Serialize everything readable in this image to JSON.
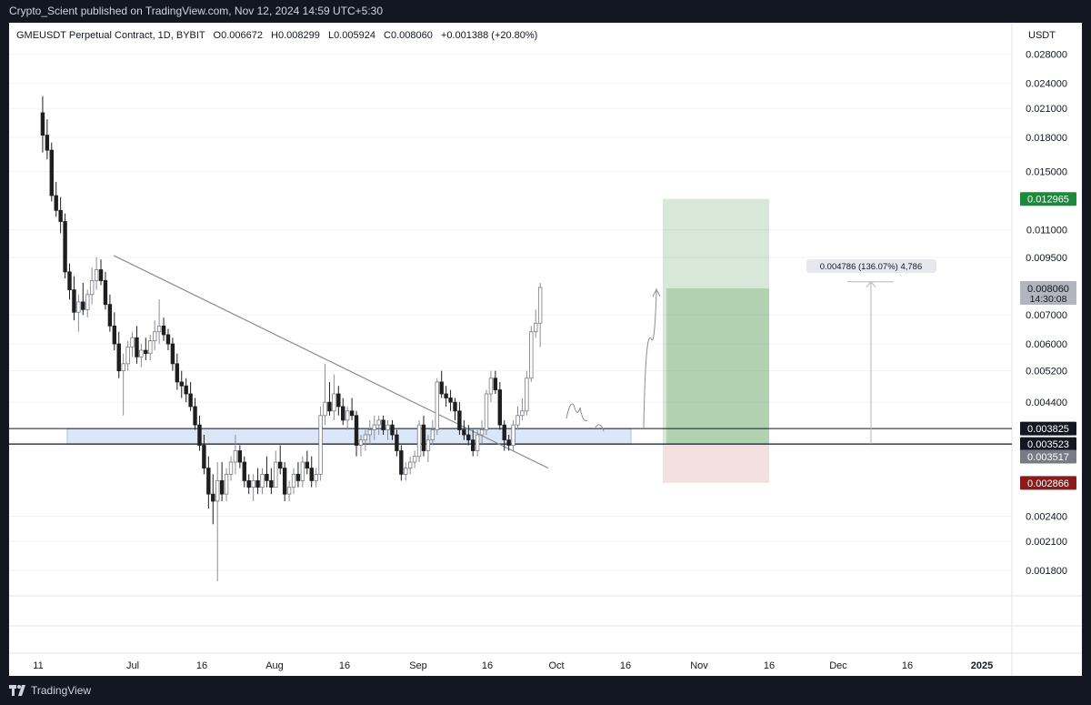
{
  "header": {
    "published_by": "Crypto_Scient published on TradingView.com, Nov 12, 2024 14:59 UTC+5:30"
  },
  "legend": {
    "symbol": "GMEUSDT Perpetual Contract, 1D, BYBIT",
    "open_label": "O",
    "open": "0.006672",
    "high_label": "H",
    "high": "0.008299",
    "low_label": "L",
    "low": "0.005924",
    "close_label": "C",
    "close": "0.008060",
    "change": "+0.001388 (+20.80%)"
  },
  "currency": "USDT",
  "footer": {
    "brand": "TradingView"
  },
  "chart_data": {
    "type": "candlestick",
    "y_scale": "log",
    "ylim": [
      0.0016,
      0.028
    ],
    "y_ticks": [
      "0.028000",
      "0.024000",
      "0.021000",
      "0.018000",
      "0.015000",
      "0.011000",
      "0.009500",
      "0.007000",
      "0.006000",
      "0.005200",
      "0.004400",
      "0.002400",
      "0.002100",
      "0.001800"
    ],
    "x_ticks": [
      "11",
      "Jul",
      "16",
      "Aug",
      "16",
      "Sep",
      "16",
      "Oct",
      "16",
      "Nov",
      "16",
      "Dec",
      "16",
      "2025"
    ],
    "candles": [
      [
        0.0205,
        0.0224,
        0.0166,
        0.0182
      ],
      [
        0.0182,
        0.0198,
        0.016,
        0.0168
      ],
      [
        0.0168,
        0.0175,
        0.0128,
        0.0132
      ],
      [
        0.0132,
        0.0142,
        0.0118,
        0.0122
      ],
      [
        0.0122,
        0.0131,
        0.0108,
        0.0115
      ],
      [
        0.0115,
        0.012,
        0.0085,
        0.0088
      ],
      [
        0.0088,
        0.0092,
        0.0076,
        0.008
      ],
      [
        0.008,
        0.0086,
        0.0068,
        0.0071
      ],
      [
        0.0071,
        0.0078,
        0.0064,
        0.0075
      ],
      [
        0.0075,
        0.0083,
        0.007,
        0.0072
      ],
      [
        0.0072,
        0.008,
        0.0069,
        0.0078
      ],
      [
        0.0078,
        0.009,
        0.0074,
        0.0084
      ],
      [
        0.0084,
        0.0095,
        0.008,
        0.0089
      ],
      [
        0.0089,
        0.0094,
        0.0082,
        0.0084
      ],
      [
        0.0084,
        0.0088,
        0.0072,
        0.0074
      ],
      [
        0.0074,
        0.0078,
        0.0064,
        0.0066
      ],
      [
        0.0066,
        0.0071,
        0.0058,
        0.006
      ],
      [
        0.006,
        0.0064,
        0.005,
        0.0052
      ],
      [
        0.0052,
        0.0057,
        0.0041,
        0.0054
      ],
      [
        0.0054,
        0.0061,
        0.0052,
        0.0059
      ],
      [
        0.0059,
        0.0064,
        0.0056,
        0.0062
      ],
      [
        0.0062,
        0.0066,
        0.0054,
        0.0056
      ],
      [
        0.0056,
        0.006,
        0.0053,
        0.0058
      ],
      [
        0.0058,
        0.0062,
        0.0055,
        0.0057
      ],
      [
        0.0057,
        0.0063,
        0.0055,
        0.0061
      ],
      [
        0.0061,
        0.0068,
        0.0058,
        0.0064
      ],
      [
        0.0064,
        0.0076,
        0.006,
        0.0066
      ],
      [
        0.0066,
        0.0069,
        0.0061,
        0.0063
      ],
      [
        0.0063,
        0.0065,
        0.0058,
        0.006
      ],
      [
        0.006,
        0.0062,
        0.0052,
        0.0054
      ],
      [
        0.0054,
        0.0057,
        0.0047,
        0.0049
      ],
      [
        0.0049,
        0.0052,
        0.0045,
        0.0048
      ],
      [
        0.0048,
        0.005,
        0.0044,
        0.0046
      ],
      [
        0.0046,
        0.0049,
        0.0042,
        0.0043
      ],
      [
        0.0043,
        0.0045,
        0.0038,
        0.0039
      ],
      [
        0.0039,
        0.0041,
        0.0034,
        0.0035
      ],
      [
        0.0035,
        0.0037,
        0.003,
        0.0031
      ],
      [
        0.0031,
        0.0033,
        0.0025,
        0.0027
      ],
      [
        0.0027,
        0.003,
        0.0023,
        0.0026
      ],
      [
        0.0026,
        0.0032,
        0.0017,
        0.0029
      ],
      [
        0.0029,
        0.0032,
        0.0026,
        0.0027
      ],
      [
        0.0027,
        0.0031,
        0.0026,
        0.003
      ],
      [
        0.003,
        0.0033,
        0.0029,
        0.0032
      ],
      [
        0.0032,
        0.0037,
        0.003,
        0.0034
      ],
      [
        0.0034,
        0.0035,
        0.0031,
        0.0032
      ],
      [
        0.0032,
        0.0033,
        0.0028,
        0.0029
      ],
      [
        0.0029,
        0.003,
        0.0027,
        0.0028
      ],
      [
        0.0028,
        0.003,
        0.0026,
        0.0029
      ],
      [
        0.0029,
        0.0031,
        0.0027,
        0.0028
      ],
      [
        0.0028,
        0.0031,
        0.0027,
        0.003
      ],
      [
        0.003,
        0.0033,
        0.0028,
        0.0029
      ],
      [
        0.0029,
        0.0031,
        0.0027,
        0.0028
      ],
      [
        0.0028,
        0.0034,
        0.0028,
        0.0032
      ],
      [
        0.0032,
        0.0035,
        0.003,
        0.0031
      ],
      [
        0.0031,
        0.0032,
        0.0026,
        0.0027
      ],
      [
        0.0027,
        0.0029,
        0.0026,
        0.0028
      ],
      [
        0.0028,
        0.0031,
        0.0027,
        0.003
      ],
      [
        0.003,
        0.0032,
        0.0028,
        0.0029
      ],
      [
        0.0029,
        0.0033,
        0.0028,
        0.0032
      ],
      [
        0.0032,
        0.0034,
        0.003,
        0.0031
      ],
      [
        0.0031,
        0.0033,
        0.0028,
        0.0029
      ],
      [
        0.0029,
        0.0031,
        0.0028,
        0.003
      ],
      [
        0.003,
        0.0043,
        0.0029,
        0.0041
      ],
      [
        0.0041,
        0.0054,
        0.0039,
        0.0044
      ],
      [
        0.0044,
        0.0049,
        0.0041,
        0.0042
      ],
      [
        0.0042,
        0.0051,
        0.004,
        0.0046
      ],
      [
        0.0046,
        0.0048,
        0.0041,
        0.0043
      ],
      [
        0.0043,
        0.0045,
        0.0039,
        0.004
      ],
      [
        0.004,
        0.0043,
        0.0038,
        0.0042
      ],
      [
        0.0042,
        0.0045,
        0.004,
        0.0041
      ],
      [
        0.0041,
        0.0042,
        0.0033,
        0.0035
      ],
      [
        0.0035,
        0.0037,
        0.0033,
        0.0036
      ],
      [
        0.0036,
        0.0038,
        0.0034,
        0.0037
      ],
      [
        0.0037,
        0.004,
        0.0035,
        0.0038
      ],
      [
        0.0038,
        0.0041,
        0.0036,
        0.0039
      ],
      [
        0.0039,
        0.0041,
        0.0037,
        0.004
      ],
      [
        0.004,
        0.0041,
        0.0037,
        0.0038
      ],
      [
        0.0038,
        0.004,
        0.0036,
        0.0039
      ],
      [
        0.0039,
        0.004,
        0.0036,
        0.0037
      ],
      [
        0.0037,
        0.0038,
        0.0033,
        0.0034
      ],
      [
        0.0034,
        0.0035,
        0.0029,
        0.003
      ],
      [
        0.003,
        0.0032,
        0.0029,
        0.0031
      ],
      [
        0.0031,
        0.0033,
        0.003,
        0.0032
      ],
      [
        0.0032,
        0.0034,
        0.0031,
        0.0033
      ],
      [
        0.0033,
        0.004,
        0.0032,
        0.0039
      ],
      [
        0.0039,
        0.0041,
        0.0033,
        0.0034
      ],
      [
        0.0034,
        0.0037,
        0.0032,
        0.0036
      ],
      [
        0.0036,
        0.004,
        0.0035,
        0.0038
      ],
      [
        0.0038,
        0.005,
        0.0037,
        0.0049
      ],
      [
        0.0049,
        0.0052,
        0.0045,
        0.0046
      ],
      [
        0.0046,
        0.0048,
        0.0043,
        0.0045
      ],
      [
        0.0045,
        0.0047,
        0.0042,
        0.0044
      ],
      [
        0.0044,
        0.0045,
        0.004,
        0.0042
      ],
      [
        0.0042,
        0.0044,
        0.0037,
        0.0038
      ],
      [
        0.0038,
        0.004,
        0.0036,
        0.0037
      ],
      [
        0.0037,
        0.0039,
        0.0035,
        0.0036
      ],
      [
        0.0036,
        0.0038,
        0.0033,
        0.0034
      ],
      [
        0.0034,
        0.0038,
        0.0033,
        0.0037
      ],
      [
        0.0037,
        0.004,
        0.0035,
        0.0038
      ],
      [
        0.0038,
        0.0047,
        0.0037,
        0.0046
      ],
      [
        0.0046,
        0.0052,
        0.0044,
        0.005
      ],
      [
        0.005,
        0.0052,
        0.0046,
        0.0047
      ],
      [
        0.0047,
        0.0049,
        0.0038,
        0.0039
      ],
      [
        0.0039,
        0.004,
        0.0034,
        0.0036
      ],
      [
        0.0036,
        0.0037,
        0.0034,
        0.0035
      ],
      [
        0.0035,
        0.004,
        0.0034,
        0.0039
      ],
      [
        0.0039,
        0.0043,
        0.0038,
        0.0041
      ],
      [
        0.0041,
        0.0045,
        0.004,
        0.0042
      ],
      [
        0.0042,
        0.0052,
        0.0041,
        0.005
      ],
      [
        0.005,
        0.0066,
        0.0049,
        0.0064
      ],
      [
        0.0064,
        0.0072,
        0.0062,
        0.0067
      ],
      [
        0.0067,
        0.0083,
        0.0059,
        0.0081
      ]
    ],
    "ohlc_order": [
      "open",
      "high",
      "low",
      "close"
    ],
    "trendline_from": [
      0.0096,
      "Jun 27"
    ],
    "trendline_to": [
      0.0031,
      "Sep 28"
    ],
    "support_zone": [
      0.003523,
      0.003825
    ],
    "position": {
      "entry": 0.003523,
      "target": 0.012965,
      "stop": 0.002866
    },
    "measure_label": "0.004786 (136.07%) 4,786",
    "price_labels": [
      {
        "text": "0.012965",
        "value": 0.012965,
        "color": "#1b8a3a"
      },
      {
        "text": "0.008060",
        "value": 0.00806,
        "color": "#b2b5be",
        "sub": "14:30:08"
      },
      {
        "text": "0.003825",
        "value": 0.003825,
        "color": "#131722"
      },
      {
        "text": "0.003523",
        "value": 0.003523,
        "color": "#131722"
      },
      {
        "text": "0.003517",
        "value": 0.003517,
        "color": "#787b86"
      },
      {
        "text": "0.002866",
        "value": 0.002866,
        "color": "#8b1a1a"
      }
    ]
  }
}
